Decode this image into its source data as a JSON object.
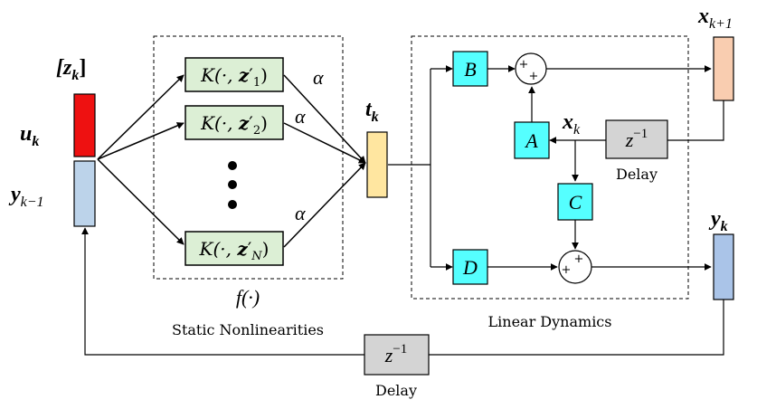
{
  "input_vector": {
    "label": "[z",
    "sub": "k",
    "close": "]"
  },
  "u": {
    "label": "u",
    "sub": "k"
  },
  "y_prev": {
    "label": "y",
    "sub": "k−1"
  },
  "kernels": [
    {
      "pre": "K(·, ",
      "z": "z",
      "prime": "′",
      "sub": "1",
      "post": ")"
    },
    {
      "pre": "K(·, ",
      "z": "z",
      "prime": "′",
      "sub": "2",
      "post": ")"
    },
    {
      "pre": "K(·, ",
      "z": "z",
      "prime": "′",
      "sub": "N",
      "post": ")"
    }
  ],
  "alpha": "α",
  "nonlinear_func": "f(·)",
  "static_caption": "Static Nonlinearities",
  "t": {
    "label": "t",
    "sub": "k"
  },
  "blocks": {
    "B": "B",
    "A": "A",
    "C": "C",
    "D": "D"
  },
  "plus": "+",
  "x_next": {
    "label": "x",
    "sub": "k+1"
  },
  "x_k": {
    "label": "x",
    "sub": "k"
  },
  "delay_symbol": {
    "base": "z",
    "sup": "−1"
  },
  "delay_label": "Delay",
  "y_out": {
    "label": "y",
    "sub": "k"
  },
  "linear_caption": "Linear Dynamics",
  "colors": {
    "red": "#ee1111",
    "blue_bar": "#bcd3ea",
    "yellow": "#ffe6a0",
    "orange": "#f9cdb0",
    "blue_out": "#aac4e8",
    "cyan": "#55ffff",
    "green": "#dcefd5",
    "gray": "#d4d4d4"
  }
}
